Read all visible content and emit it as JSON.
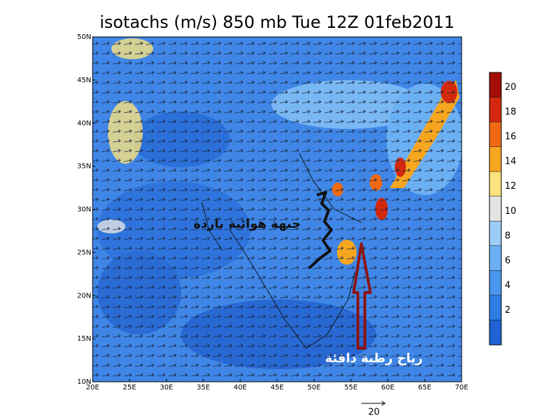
{
  "title": "isotachs (m/s) 850 mb Tue 12Z 01feb2011",
  "map": {
    "xlim": [
      20,
      70
    ],
    "ylim": [
      10,
      50
    ],
    "xticks": [
      {
        "value": 20,
        "label": "20E"
      },
      {
        "value": 25,
        "label": "25E"
      },
      {
        "value": 30,
        "label": "30E"
      },
      {
        "value": 35,
        "label": "35E"
      },
      {
        "value": 40,
        "label": "40E"
      },
      {
        "value": 45,
        "label": "45E"
      },
      {
        "value": 50,
        "label": "50E"
      },
      {
        "value": 55,
        "label": "55E"
      },
      {
        "value": 60,
        "label": "60E"
      },
      {
        "value": 65,
        "label": "65E"
      },
      {
        "value": 70,
        "label": "70E"
      }
    ],
    "yticks": [
      {
        "value": 10,
        "label": "10N"
      },
      {
        "value": 15,
        "label": "15N"
      },
      {
        "value": 20,
        "label": "20N"
      },
      {
        "value": 25,
        "label": "25N"
      },
      {
        "value": 30,
        "label": "30N"
      },
      {
        "value": 35,
        "label": "35N"
      },
      {
        "value": 40,
        "label": "40N"
      },
      {
        "value": 45,
        "label": "45N"
      },
      {
        "value": 50,
        "label": "50N"
      }
    ]
  },
  "colorbar": {
    "levels": [
      2,
      4,
      6,
      8,
      10,
      12,
      14,
      16,
      18,
      20
    ],
    "colors": [
      "#1f63d4",
      "#2f7ce4",
      "#4a95ee",
      "#6cb0f4",
      "#9ccdf7",
      "#e4e4e4",
      "#fbe27e",
      "#f7a61f",
      "#f06a14",
      "#d3290f",
      "#a30f08"
    ]
  },
  "annotations": [
    "جبهة هوائية باردة",
    "رياح رطبة دافئة"
  ],
  "reference_vector": 20
}
